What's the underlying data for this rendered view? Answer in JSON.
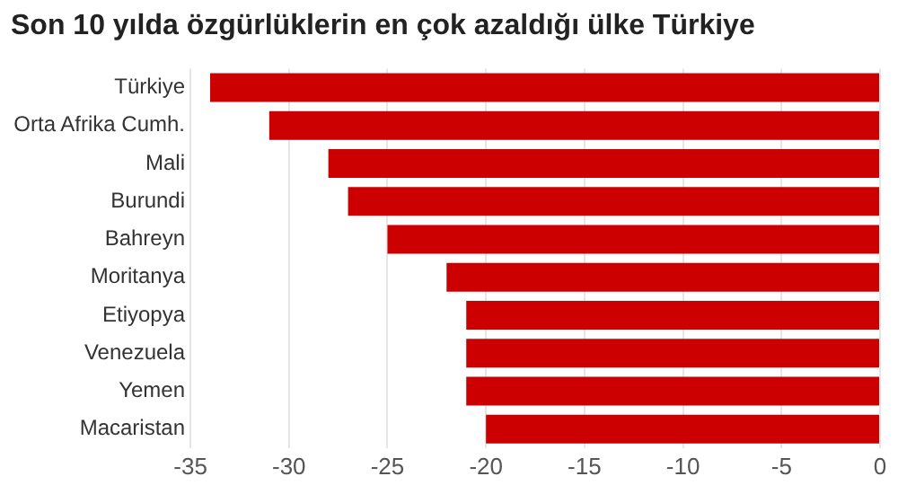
{
  "chart_data": {
    "type": "bar",
    "orientation": "horizontal",
    "title": "Son 10 yılda özgürlüklerin en çok azaldığı ülke Türkiye",
    "categories": [
      "Türkiye",
      "Orta Afrika Cumh.",
      "Mali",
      "Burundi",
      "Bahreyn",
      "Moritanya",
      "Etiyopya",
      "Venezuela",
      "Yemen",
      "Macaristan"
    ],
    "values": [
      -34,
      -31,
      -28,
      -27,
      -25,
      -22,
      -21,
      -21,
      -21,
      -20
    ],
    "color": "#cc0000",
    "xlim": [
      -35,
      0
    ],
    "xticks": [
      -35,
      -30,
      -25,
      -20,
      -15,
      -10,
      -5,
      0
    ],
    "grid": "x"
  }
}
